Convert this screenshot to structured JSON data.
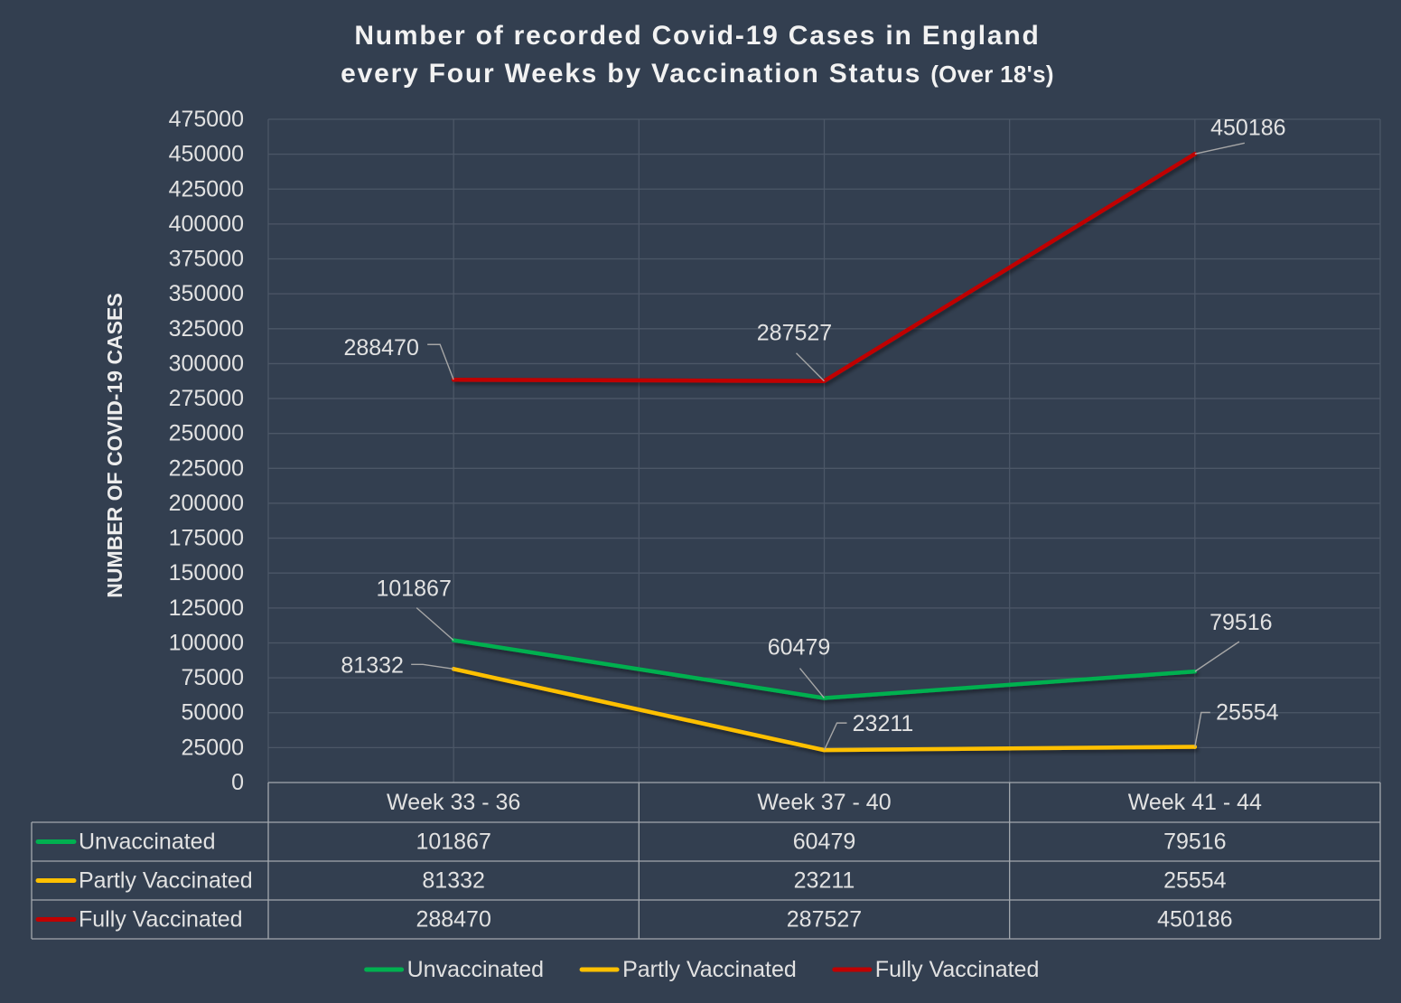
{
  "colors": {
    "background": "#333f50",
    "text": "#e2e2e2"
  },
  "chart_data": {
    "type": "line",
    "title_lines": [
      "Number of recorded Covid-19 Cases in England",
      "every Four Weeks by Vaccination Status"
    ],
    "title_note": "(Over 18's)",
    "ylabel": "NUMBER OF COVID-19 CASES",
    "ylim": [
      0,
      475000
    ],
    "yticks": [
      0,
      25000,
      50000,
      75000,
      100000,
      125000,
      150000,
      175000,
      200000,
      225000,
      250000,
      275000,
      300000,
      325000,
      350000,
      375000,
      400000,
      425000,
      450000,
      475000
    ],
    "grid": true,
    "legend": "bottom",
    "data_table": true,
    "data_labels": true,
    "categories": [
      "Week 33 - 36",
      "Week 37 - 40",
      "Week 41 - 44"
    ],
    "series": [
      {
        "name": "Unvaccinated",
        "values": [
          101867,
          60479,
          79516
        ],
        "color": "#00b050"
      },
      {
        "name": "Partly Vaccinated",
        "values": [
          81332,
          23211,
          25554
        ],
        "color": "#ffc000"
      },
      {
        "name": "Fully Vaccinated",
        "values": [
          288470,
          287527,
          450186
        ],
        "color": "#c00000"
      }
    ]
  }
}
